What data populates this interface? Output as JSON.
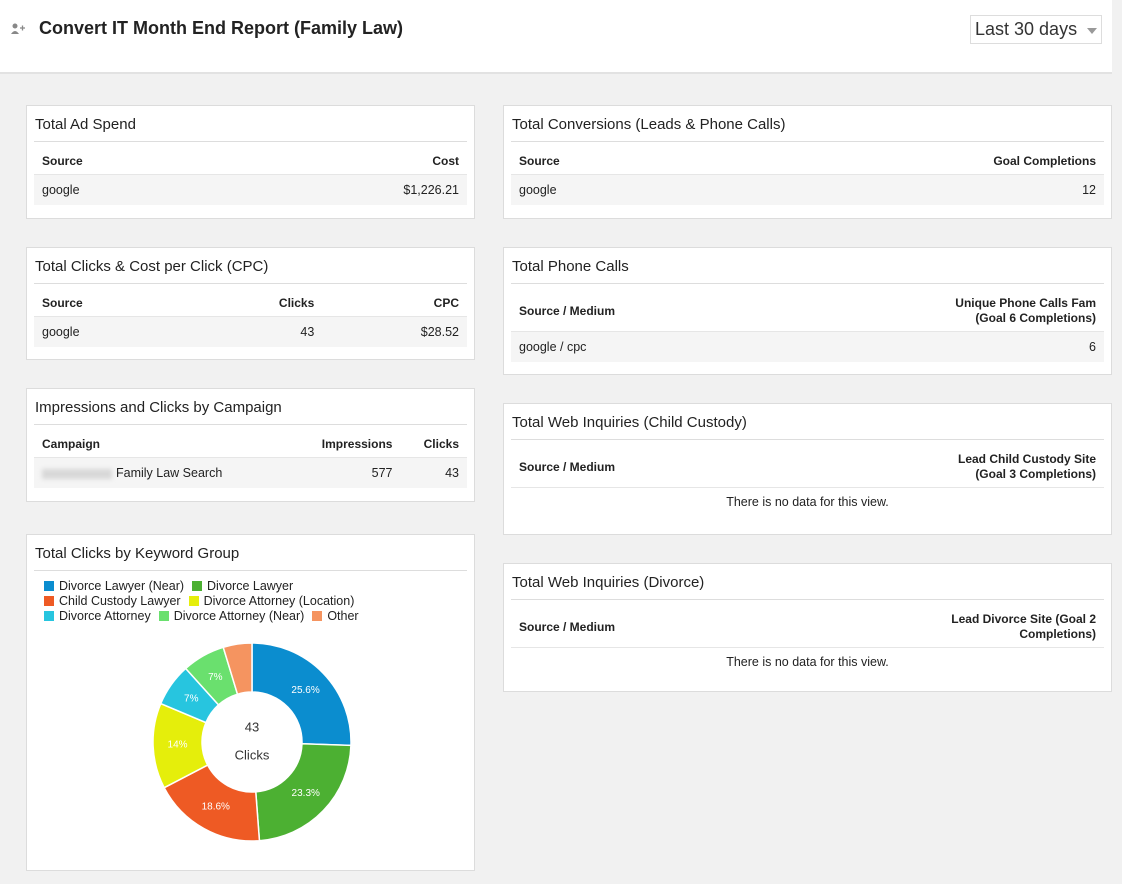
{
  "header": {
    "title": "Convert IT Month End Report (Family Law)",
    "date_range": "Last 30 days"
  },
  "widgets": [
    {
      "title": "Total Ad Spend",
      "columns": [
        "Source",
        "Cost"
      ],
      "rows": [
        [
          "google",
          "$1,226.21"
        ]
      ]
    },
    {
      "title": "Total Clicks & Cost per Click (CPC)",
      "columns": [
        "Source",
        "Clicks",
        "CPC"
      ],
      "rows": [
        [
          "google",
          "43",
          "$28.52"
        ]
      ]
    },
    {
      "title": "Impressions and Clicks by Campaign",
      "columns": [
        "Campaign",
        "Impressions",
        "Clicks"
      ],
      "rows": [
        [
          "Family Law Search",
          "577",
          "43"
        ]
      ]
    },
    {
      "title": "Total Conversions (Leads & Phone Calls)",
      "columns": [
        "Source",
        "Goal Completions"
      ],
      "rows": [
        [
          "google",
          "12"
        ]
      ]
    },
    {
      "title": "Total Phone Calls",
      "columns": [
        "Source / Medium",
        "Unique Phone Calls Fam (Goal 6 Completions)"
      ],
      "rows": [
        [
          "google / cpc",
          "6"
        ]
      ]
    },
    {
      "title": "Total Web Inquiries (Child Custody)",
      "columns": [
        "Source / Medium",
        "Lead Child Custody Site (Goal 3 Completions)"
      ],
      "rows": [],
      "empty_message": "There is no data for this view."
    },
    {
      "title": "Total Web Inquiries (Divorce)",
      "columns": [
        "Source / Medium",
        "Lead Divorce Site (Goal 2 Completions)"
      ],
      "rows": [],
      "empty_message": "There is no data for this view."
    }
  ],
  "chart_data": {
    "type": "pie",
    "donut": true,
    "title": "Total Clicks by Keyword Group",
    "categories": [
      "Divorce Lawyer (Near)",
      "Divorce Lawyer",
      "Child Custody Lawyer",
      "Divorce Attorney (Location)",
      "Divorce Attorney",
      "Divorce Attorney (Near)",
      "Other"
    ],
    "values": [
      25.6,
      23.3,
      18.6,
      14,
      7,
      7,
      4.7
    ],
    "value_labels": [
      "25.6%",
      "23.3%",
      "18.6%",
      "14%",
      "7%",
      "7%",
      null
    ],
    "colors": [
      "#0b8dcf",
      "#4cb032",
      "#ee5a24",
      "#e5ee0b",
      "#27c5df",
      "#6ae06e",
      "#f59460"
    ],
    "total": 43,
    "total_label": "Clicks"
  }
}
